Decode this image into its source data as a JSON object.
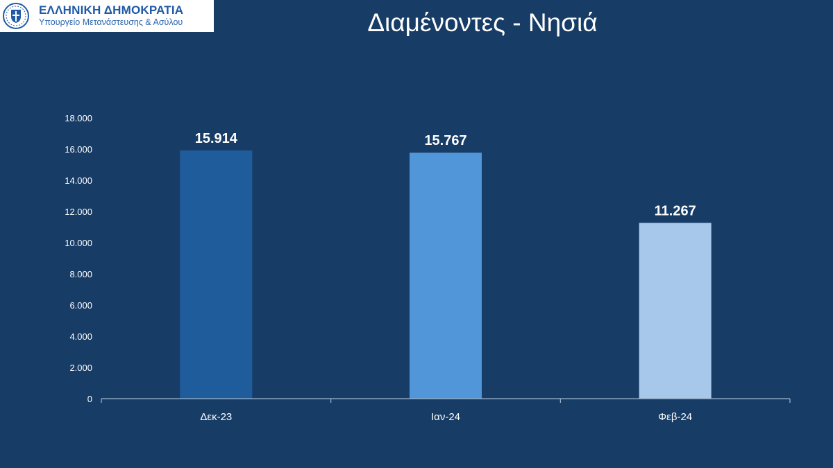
{
  "header": {
    "logo_title": "ΕΛΛΗΝΙΚΗ ΔΗΜΟΚΡΑΤΙΑ",
    "logo_subtitle": "Υπουργείο Μετανάστευσης & Ασύλου",
    "logo_icon": "greek-coat-of-arms-icon"
  },
  "colors": {
    "background": "#173c66",
    "bar1": "#1f5c9c",
    "bar2": "#5096d9",
    "bar3": "#a7c8eb",
    "axis": "#9fb6cf",
    "text": "#ffffff"
  },
  "chart_data": {
    "type": "bar",
    "title": "Διαμένοντες - Νησιά",
    "categories": [
      "Δεκ-23",
      "Ιαν-24",
      "Φεβ-24"
    ],
    "values": [
      15914,
      15767,
      11267
    ],
    "data_labels": [
      "15.914",
      "15.767",
      "11.267"
    ],
    "ylim": [
      0,
      18000
    ],
    "yticks": [
      0,
      2000,
      4000,
      6000,
      8000,
      10000,
      12000,
      14000,
      16000,
      18000
    ],
    "ytick_labels": [
      "0",
      "2.000",
      "4.000",
      "6.000",
      "8.000",
      "10.000",
      "12.000",
      "14.000",
      "16.000",
      "18.000"
    ],
    "grid": false,
    "legend": "none",
    "xlabel": "",
    "ylabel": ""
  }
}
